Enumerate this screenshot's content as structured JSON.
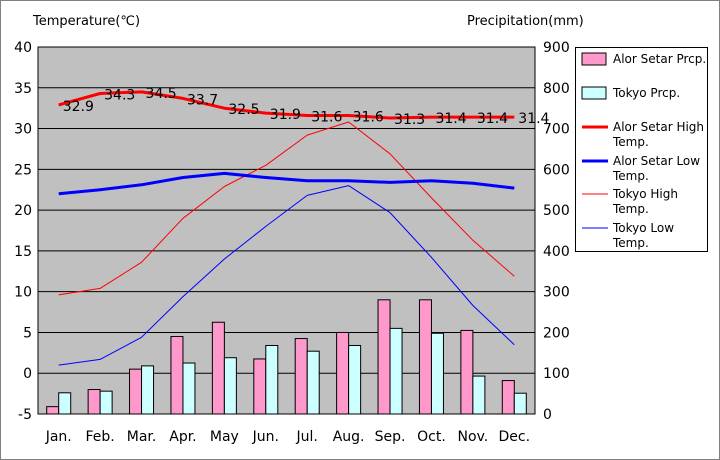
{
  "chart_data": {
    "type": "bar+line",
    "left_axis_title": "Temperature(℃)",
    "right_axis_title": "Precipitation(mm)",
    "months": [
      "Jan.",
      "Feb.",
      "Mar.",
      "Apr.",
      "May",
      "Jun.",
      "Jul.",
      "Aug.",
      "Sep.",
      "Oct.",
      "Nov.",
      "Dec."
    ],
    "temp_ylim": [
      -5,
      40
    ],
    "temp_ticks": [
      "40",
      "35",
      "30",
      "25",
      "20",
      "15",
      "10",
      "5",
      "0",
      "-5"
    ],
    "precip_ylim": [
      0,
      900
    ],
    "precip_ticks": [
      "900",
      "800",
      "700",
      "600",
      "500",
      "400",
      "300",
      "200",
      "100",
      "0"
    ],
    "bar_series": [
      {
        "name": "Alor Setar Prcp.",
        "color": "#ff99cc",
        "values": [
          18,
          60,
          110,
          190,
          225,
          135,
          185,
          200,
          280,
          280,
          205,
          82
        ]
      },
      {
        "name": "Tokyo Prcp.",
        "color": "#ccffff",
        "values": [
          52,
          56,
          118,
          125,
          138,
          168,
          154,
          168,
          210,
          198,
          93,
          51
        ]
      }
    ],
    "line_series": [
      {
        "name": "Alor Setar High Temp.",
        "color": "#ff0000",
        "width": "thick",
        "values": [
          32.9,
          34.3,
          34.5,
          33.7,
          32.5,
          31.9,
          31.6,
          31.6,
          31.3,
          31.4,
          31.4,
          31.4
        ]
      },
      {
        "name": "Alor Setar Low Temp.",
        "color": "#0000ff",
        "width": "thick",
        "values": [
          22.0,
          22.5,
          23.1,
          24.0,
          24.5,
          24.0,
          23.6,
          23.6,
          23.4,
          23.6,
          23.3,
          22.7
        ]
      },
      {
        "name": "Tokyo High Temp.",
        "color": "#ff0000",
        "width": "thin",
        "values": [
          9.6,
          10.4,
          13.6,
          19.0,
          22.9,
          25.5,
          29.2,
          30.8,
          26.9,
          21.5,
          16.3,
          11.9
        ]
      },
      {
        "name": "Tokyo Low Temp.",
        "color": "#0000ff",
        "width": "thin",
        "values": [
          1.0,
          1.7,
          4.4,
          9.4,
          14.0,
          18.0,
          21.8,
          23.0,
          19.7,
          14.2,
          8.3,
          3.5
        ]
      }
    ],
    "data_labels": [
      "32.9",
      "34.3",
      "34.5",
      "33.7",
      "32.5",
      "31.9",
      "31.6",
      "31.6",
      "31.3",
      "31.4",
      "31.4",
      "31.4"
    ],
    "legend_placement": "right",
    "plot_background": "#c0c0c0",
    "grid": "horizontal"
  }
}
